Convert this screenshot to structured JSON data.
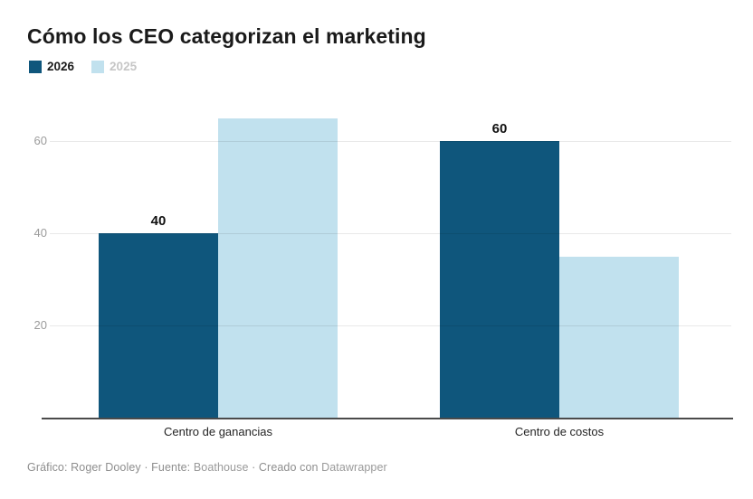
{
  "header": {
    "title": "Cómo los CEO categorizan el marketing"
  },
  "legend": {
    "items": [
      {
        "label": "2026",
        "color": "#0f567c",
        "text_color": "#1a1a1a"
      },
      {
        "label": "2025",
        "color": "#c1e1ee",
        "text_color": "#c6c6c6"
      }
    ]
  },
  "chart_data": {
    "type": "bar",
    "title": "Cómo los CEO categorizan el marketing",
    "categories": [
      "Centro de ganancias",
      "Centro de costos"
    ],
    "series": [
      {
        "name": "2026",
        "color": "#0f567c",
        "values": [
          40,
          60
        ],
        "value_labels": [
          "40",
          "60"
        ],
        "show_value_labels": true
      },
      {
        "name": "2025",
        "color": "#c1e1ee",
        "values": [
          65,
          35
        ],
        "show_value_labels": false
      }
    ],
    "yticks": [
      20,
      40,
      60
    ],
    "ylim": [
      0,
      70
    ],
    "grid": true,
    "legend_position": "top-left",
    "xlabel": "",
    "ylabel": ""
  },
  "footer": {
    "byline": "Gráfico: Roger Dooley · Fuente: ",
    "source": "Boathouse",
    "separator": " · Creado con ",
    "tool": "Datawrapper"
  },
  "colors": {
    "bar_2026": "#0f567c",
    "bar_2025": "#c1e1ee",
    "gridline": "#e9e9e9",
    "baseline": "#4a4a4a",
    "tick_text": "#9b9b9b",
    "value_label_text": "#111111",
    "category_text": "#242424",
    "footer_text": "#8e8e8e",
    "title_text": "#1a1a1a"
  }
}
